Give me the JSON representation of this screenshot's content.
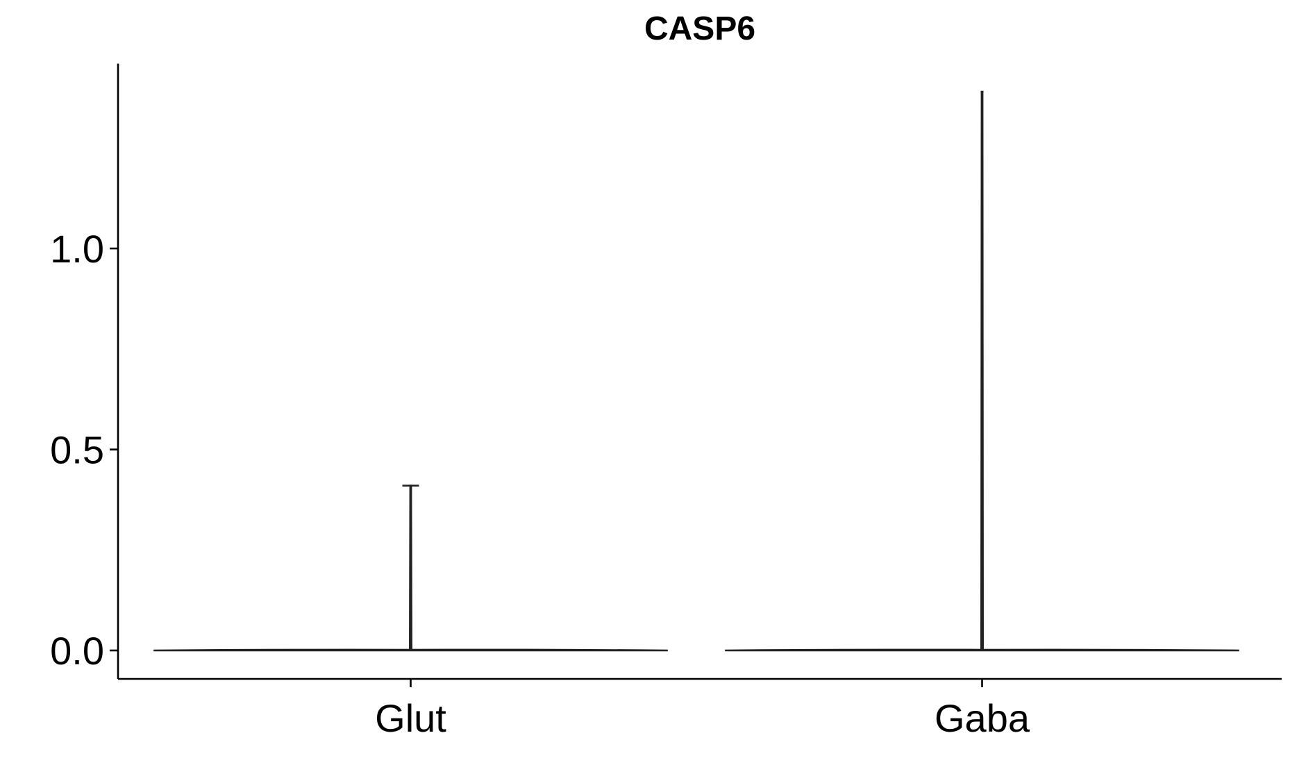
{
  "chart_data": {
    "type": "violin",
    "title": "CASP6",
    "xlabel": "",
    "ylabel": "",
    "categories": [
      "Glut",
      "Gaba"
    ],
    "series": [
      {
        "category": "Glut",
        "min": 0.0,
        "max": 0.41,
        "density_mode": 0.0,
        "color": "#222222"
      },
      {
        "category": "Gaba",
        "min": 0.0,
        "max": 1.39,
        "density_mode": 0.0,
        "color": "#222222"
      }
    ],
    "yticks": [
      0.0,
      0.5,
      1.0
    ],
    "ytick_labels": [
      "0.0",
      "0.5",
      "1.0"
    ],
    "ylim": [
      -0.07,
      1.46
    ],
    "grid": false,
    "legend": "none"
  }
}
